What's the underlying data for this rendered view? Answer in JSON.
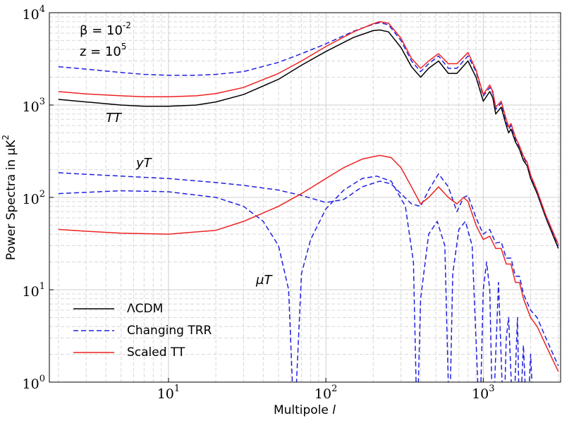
{
  "chart_data": {
    "type": "line",
    "xlabel": {
      "text": "Multipole",
      "var": "l"
    },
    "ylabel": {
      "text": "Power Spectra in μK",
      "exp": "2"
    },
    "xscale": "log",
    "yscale": "log",
    "xlim": [
      1.75,
      3100
    ],
    "ylim": [
      1,
      10000
    ],
    "xticks": [
      {
        "value": 10,
        "label": "10",
        "exp": "1"
      },
      {
        "value": 100,
        "label": "10",
        "exp": "2"
      },
      {
        "value": 1000,
        "label": "10",
        "exp": "3"
      }
    ],
    "yticks": [
      {
        "value": 1,
        "label": "10",
        "exp": "0"
      },
      {
        "value": 10,
        "label": "10",
        "exp": "1"
      },
      {
        "value": 100,
        "label": "10",
        "exp": "2"
      },
      {
        "value": 1000,
        "label": "10",
        "exp": "3"
      },
      {
        "value": 10000,
        "label": "10",
        "exp": "4"
      }
    ],
    "grid": true,
    "legend": "lower left",
    "annotations": [
      {
        "text": "β = 10",
        "exp": "-2"
      },
      {
        "text": "z = 10",
        "exp": "5"
      },
      {
        "text": "TT"
      },
      {
        "text": "yT"
      },
      {
        "text": "μT"
      }
    ],
    "series": [
      {
        "name": "ΛCDM",
        "color": "#000000",
        "dashed": false,
        "curves": [
          {
            "x": [
              2,
              3,
              5,
              7,
              10,
              15,
              20,
              30,
              50,
              70,
              100,
              150,
              200,
              220,
              250,
              300,
              350,
              400,
              450,
              520,
              600,
              680,
              800,
              900,
              1000,
              1100,
              1150,
              1200,
              1300,
              1400,
              1450,
              1500,
              1600,
              1700,
              1800,
              1900,
              2000,
              2200,
              2500,
              3000
            ],
            "values": [
              1150,
              1080,
              1000,
              970,
              970,
              1000,
              1080,
              1300,
              1900,
              2700,
              3800,
              5400,
              6400,
              6500,
              6200,
              4200,
              2600,
              2000,
              2500,
              3000,
              2200,
              2200,
              3000,
              2000,
              1100,
              1400,
              1200,
              800,
              950,
              600,
              500,
              550,
              400,
              330,
              250,
              220,
              160,
              110,
              60,
              28
            ]
          }
        ]
      },
      {
        "name": "Changing TRR",
        "color": "#2020e0",
        "dashed": true,
        "curves": [
          {
            "x": [
              2,
              3,
              5,
              7,
              10,
              15,
              20,
              30,
              50,
              70,
              100,
              150,
              200,
              220,
              250,
              300,
              350,
              400,
              450,
              520,
              600,
              680,
              800,
              900,
              1000,
              1100,
              1150,
              1200,
              1300,
              1400,
              1450,
              1500,
              1600,
              1700,
              1800,
              1900,
              2000,
              2200,
              2500,
              3000
            ],
            "values": [
              2600,
              2450,
              2250,
              2150,
              2100,
              2100,
              2150,
              2300,
              2900,
              3600,
              4600,
              6300,
              7500,
              7800,
              7400,
              5000,
              3000,
              2300,
              2800,
              3400,
              2500,
              2500,
              3400,
              2300,
              1250,
              1550,
              1350,
              900,
              1050,
              660,
              550,
              600,
              430,
              350,
              270,
              230,
              170,
              115,
              62,
              30
            ]
          },
          {
            "x": [
              2,
              3,
              5,
              10,
              20,
              30,
              50,
              70,
              100,
              130,
              170,
              220,
              260,
              300,
              350,
              400,
              450,
              520,
              600,
              680,
              750,
              800,
              900,
              1000,
              1100,
              1200,
              1300,
              1400,
              1500,
              1600,
              1700,
              1800,
              2000,
              2200,
              2500,
              3000
            ],
            "values": [
              185,
              178,
              170,
              160,
              145,
              135,
              120,
              105,
              88,
              95,
              130,
              150,
              140,
              110,
              85,
              80,
              120,
              180,
              130,
              70,
              100,
              105,
              60,
              40,
              45,
              32,
              33,
              22,
              22,
              14,
              14,
              9,
              6,
              5,
              3,
              1.5
            ]
          },
          {
            "x": [
              2,
              5,
              10,
              20,
              30,
              40,
              50,
              58,
              63,
              70,
              80,
              100,
              130,
              170,
              210,
              260,
              320,
              360,
              380,
              400,
              450,
              510,
              570,
              610,
              640,
              700,
              770,
              850,
              950,
              1000,
              1050,
              1100,
              1150,
              1250,
              1350,
              1400,
              1450,
              1550,
              1650,
              1700,
              1800,
              1900,
              2000,
              2100
            ],
            "values": [
              110,
              118,
              115,
              100,
              80,
              55,
              30,
              10,
              0.3,
              15,
              35,
              75,
              120,
              160,
              170,
              150,
              80,
              20,
              0.3,
              8,
              40,
              55,
              30,
              0.3,
              15,
              45,
              55,
              30,
              0.3,
              10,
              20,
              10,
              0.3,
              12,
              0.3,
              3,
              5,
              0.3,
              5,
              0.3,
              2.5,
              0.3,
              2,
              0.3
            ]
          }
        ]
      },
      {
        "name": "Scaled TT",
        "color": "#ee2222",
        "dashed": false,
        "curves": [
          {
            "x": [
              2,
              3,
              5,
              7,
              10,
              15,
              20,
              30,
              50,
              70,
              100,
              150,
              200,
              220,
              250,
              300,
              350,
              400,
              450,
              520,
              600,
              680,
              800,
              900,
              1000,
              1100,
              1150,
              1200,
              1300,
              1400,
              1450,
              1500,
              1600,
              1700,
              1800,
              1900,
              2000,
              2200,
              2500,
              3000
            ],
            "values": [
              1400,
              1320,
              1260,
              1230,
              1230,
              1260,
              1330,
              1550,
              2200,
              3000,
              4300,
              6200,
              7600,
              8000,
              7700,
              5300,
              3200,
              2500,
              3000,
              3600,
              2800,
              2800,
              3700,
              2400,
              1300,
              1650,
              1400,
              950,
              1100,
              700,
              580,
              630,
              450,
              360,
              280,
              240,
              175,
              118,
              64,
              31
            ]
          },
          {
            "x": [
              2,
              3,
              5,
              10,
              20,
              30,
              50,
              70,
              100,
              130,
              170,
              220,
              260,
              300,
              350,
              400,
              450,
              520,
              600,
              680,
              750,
              800,
              900,
              1000,
              1100,
              1200,
              1300,
              1400,
              1500,
              1600,
              1700,
              1800,
              2000,
              2200,
              2500,
              3000
            ],
            "values": [
              45,
              43,
              41,
              40,
              44,
              55,
              80,
              110,
              160,
              210,
              260,
              285,
              270,
              210,
              130,
              85,
              100,
              130,
              100,
              85,
              100,
              90,
              50,
              35,
              38,
              28,
              28,
              19,
              19,
              12,
              12,
              8,
              5,
              4,
              2.5,
              1.3
            ]
          }
        ]
      }
    ]
  }
}
